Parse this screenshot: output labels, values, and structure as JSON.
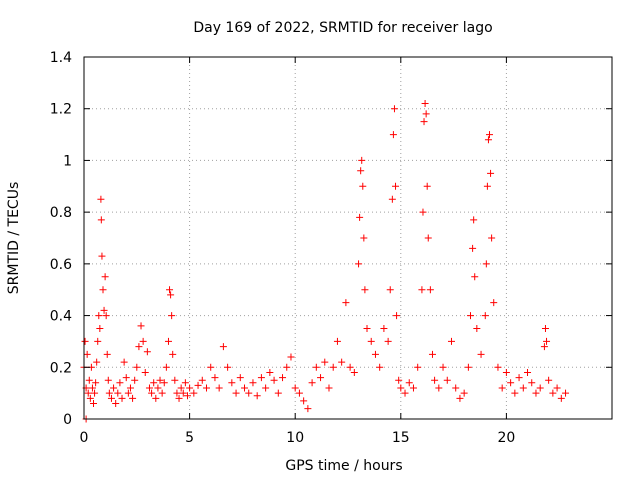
{
  "chart_data": {
    "type": "scatter",
    "title": "Day 169 of 2022, SRMTID for receiver lago",
    "xlabel": "GPS time / hours",
    "ylabel": "SRMTID / TECUs",
    "xlim": [
      0,
      25
    ],
    "ylim": [
      0,
      1.4
    ],
    "xticks": [
      0,
      5,
      10,
      15,
      20
    ],
    "yticks": [
      0,
      0.2,
      0.4,
      0.6,
      0.8,
      1,
      1.2,
      1.4
    ],
    "ytick_labels": [
      "0",
      "0.2",
      "0.4",
      "0.6",
      "0.8",
      "1",
      "1.2",
      "1.4"
    ],
    "grid": true,
    "marker": "+",
    "color": "#ff0000",
    "series": [
      {
        "name": "SRMTID",
        "points": [
          [
            0.0,
            0.2
          ],
          [
            0.05,
            0.3
          ],
          [
            0.1,
            0.12
          ],
          [
            0.1,
            0.0
          ],
          [
            0.15,
            0.25
          ],
          [
            0.2,
            0.1
          ],
          [
            0.25,
            0.15
          ],
          [
            0.3,
            0.08
          ],
          [
            0.35,
            0.2
          ],
          [
            0.4,
            0.12
          ],
          [
            0.45,
            0.06
          ],
          [
            0.5,
            0.1
          ],
          [
            0.55,
            0.14
          ],
          [
            0.6,
            0.22
          ],
          [
            0.65,
            0.3
          ],
          [
            0.7,
            0.4
          ],
          [
            0.75,
            0.35
          ],
          [
            0.8,
            0.85
          ],
          [
            0.82,
            0.77
          ],
          [
            0.85,
            0.63
          ],
          [
            0.9,
            0.5
          ],
          [
            0.95,
            0.42
          ],
          [
            1.0,
            0.55
          ],
          [
            1.05,
            0.4
          ],
          [
            1.1,
            0.25
          ],
          [
            1.15,
            0.15
          ],
          [
            1.2,
            0.1
          ],
          [
            1.3,
            0.08
          ],
          [
            1.4,
            0.12
          ],
          [
            1.5,
            0.06
          ],
          [
            1.6,
            0.1
          ],
          [
            1.7,
            0.14
          ],
          [
            1.8,
            0.08
          ],
          [
            1.9,
            0.22
          ],
          [
            2.0,
            0.16
          ],
          [
            2.1,
            0.1
          ],
          [
            2.2,
            0.12
          ],
          [
            2.3,
            0.08
          ],
          [
            2.4,
            0.15
          ],
          [
            2.5,
            0.2
          ],
          [
            2.6,
            0.28
          ],
          [
            2.7,
            0.36
          ],
          [
            2.8,
            0.3
          ],
          [
            2.9,
            0.18
          ],
          [
            3.0,
            0.26
          ],
          [
            3.1,
            0.12
          ],
          [
            3.2,
            0.1
          ],
          [
            3.3,
            0.14
          ],
          [
            3.4,
            0.08
          ],
          [
            3.5,
            0.12
          ],
          [
            3.6,
            0.15
          ],
          [
            3.7,
            0.1
          ],
          [
            3.8,
            0.14
          ],
          [
            3.9,
            0.2
          ],
          [
            4.0,
            0.3
          ],
          [
            4.05,
            0.5
          ],
          [
            4.1,
            0.48
          ],
          [
            4.15,
            0.4
          ],
          [
            4.2,
            0.25
          ],
          [
            4.3,
            0.15
          ],
          [
            4.4,
            0.1
          ],
          [
            4.5,
            0.08
          ],
          [
            4.6,
            0.12
          ],
          [
            4.7,
            0.1
          ],
          [
            4.8,
            0.14
          ],
          [
            4.9,
            0.09
          ],
          [
            5.0,
            0.12
          ],
          [
            5.2,
            0.1
          ],
          [
            5.4,
            0.13
          ],
          [
            5.6,
            0.15
          ],
          [
            5.8,
            0.12
          ],
          [
            6.0,
            0.2
          ],
          [
            6.2,
            0.16
          ],
          [
            6.4,
            0.12
          ],
          [
            6.6,
            0.28
          ],
          [
            6.8,
            0.2
          ],
          [
            7.0,
            0.14
          ],
          [
            7.2,
            0.1
          ],
          [
            7.4,
            0.16
          ],
          [
            7.6,
            0.12
          ],
          [
            7.8,
            0.1
          ],
          [
            8.0,
            0.14
          ],
          [
            8.2,
            0.09
          ],
          [
            8.4,
            0.16
          ],
          [
            8.6,
            0.12
          ],
          [
            8.8,
            0.18
          ],
          [
            9.0,
            0.15
          ],
          [
            9.2,
            0.1
          ],
          [
            9.4,
            0.16
          ],
          [
            9.6,
            0.2
          ],
          [
            9.8,
            0.24
          ],
          [
            10.0,
            0.12
          ],
          [
            10.2,
            0.1
          ],
          [
            10.4,
            0.07
          ],
          [
            10.6,
            0.04
          ],
          [
            10.8,
            0.14
          ],
          [
            11.0,
            0.2
          ],
          [
            11.2,
            0.16
          ],
          [
            11.4,
            0.22
          ],
          [
            11.6,
            0.12
          ],
          [
            11.8,
            0.2
          ],
          [
            12.0,
            0.3
          ],
          [
            12.2,
            0.22
          ],
          [
            12.4,
            0.45
          ],
          [
            12.6,
            0.2
          ],
          [
            12.8,
            0.18
          ],
          [
            13.0,
            0.6
          ],
          [
            13.05,
            0.78
          ],
          [
            13.1,
            0.96
          ],
          [
            13.15,
            1.0
          ],
          [
            13.2,
            0.9
          ],
          [
            13.25,
            0.7
          ],
          [
            13.3,
            0.5
          ],
          [
            13.4,
            0.35
          ],
          [
            13.6,
            0.3
          ],
          [
            13.8,
            0.25
          ],
          [
            14.0,
            0.2
          ],
          [
            14.2,
            0.35
          ],
          [
            14.4,
            0.3
          ],
          [
            14.5,
            0.5
          ],
          [
            14.6,
            0.85
          ],
          [
            14.65,
            1.1
          ],
          [
            14.7,
            1.2
          ],
          [
            14.75,
            0.9
          ],
          [
            14.8,
            0.4
          ],
          [
            14.9,
            0.15
          ],
          [
            15.0,
            0.12
          ],
          [
            15.2,
            0.1
          ],
          [
            15.4,
            0.14
          ],
          [
            15.6,
            0.12
          ],
          [
            15.8,
            0.2
          ],
          [
            16.0,
            0.5
          ],
          [
            16.05,
            0.8
          ],
          [
            16.1,
            1.15
          ],
          [
            16.15,
            1.22
          ],
          [
            16.2,
            1.18
          ],
          [
            16.25,
            0.9
          ],
          [
            16.3,
            0.7
          ],
          [
            16.4,
            0.5
          ],
          [
            16.5,
            0.25
          ],
          [
            16.6,
            0.15
          ],
          [
            16.8,
            0.12
          ],
          [
            17.0,
            0.2
          ],
          [
            17.2,
            0.15
          ],
          [
            17.4,
            0.3
          ],
          [
            17.6,
            0.12
          ],
          [
            17.8,
            0.08
          ],
          [
            18.0,
            0.1
          ],
          [
            18.2,
            0.2
          ],
          [
            18.3,
            0.4
          ],
          [
            18.4,
            0.66
          ],
          [
            18.45,
            0.77
          ],
          [
            18.5,
            0.55
          ],
          [
            18.6,
            0.35
          ],
          [
            18.8,
            0.25
          ],
          [
            19.0,
            0.4
          ],
          [
            19.05,
            0.6
          ],
          [
            19.1,
            0.9
          ],
          [
            19.15,
            1.08
          ],
          [
            19.2,
            1.1
          ],
          [
            19.25,
            0.95
          ],
          [
            19.3,
            0.7
          ],
          [
            19.4,
            0.45
          ],
          [
            19.6,
            0.2
          ],
          [
            19.8,
            0.12
          ],
          [
            20.0,
            0.18
          ],
          [
            20.2,
            0.14
          ],
          [
            20.4,
            0.1
          ],
          [
            20.6,
            0.16
          ],
          [
            20.8,
            0.12
          ],
          [
            21.0,
            0.18
          ],
          [
            21.2,
            0.14
          ],
          [
            21.4,
            0.1
          ],
          [
            21.6,
            0.12
          ],
          [
            21.8,
            0.28
          ],
          [
            21.85,
            0.35
          ],
          [
            21.9,
            0.3
          ],
          [
            22.0,
            0.15
          ],
          [
            22.2,
            0.1
          ],
          [
            22.4,
            0.12
          ],
          [
            22.6,
            0.08
          ],
          [
            22.8,
            0.1
          ]
        ]
      }
    ]
  }
}
